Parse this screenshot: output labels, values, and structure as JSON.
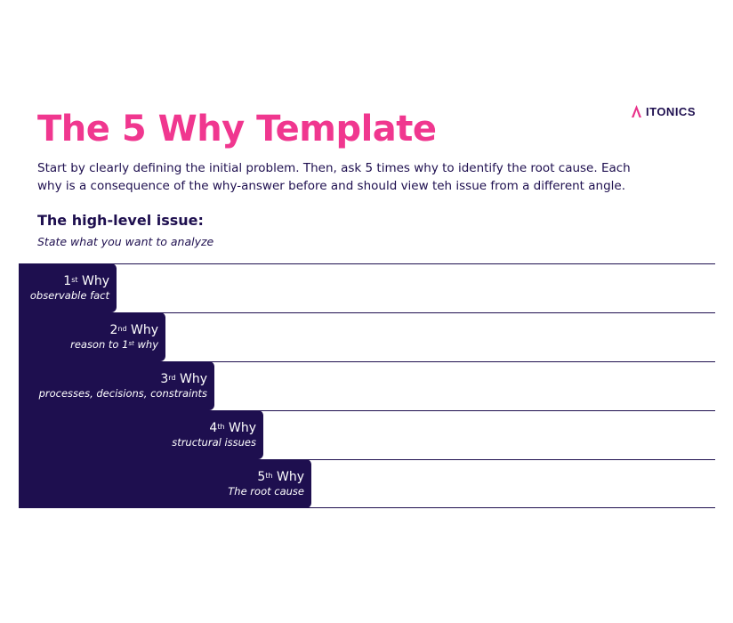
{
  "title": "The 5 Why Template",
  "logo": {
    "text": "ITONICS",
    "icon": "itonics-triangle-icon",
    "color": "#e8318a"
  },
  "intro": "Start by clearly defining the initial problem. Then, ask 5 times why to identify the root cause. Each why is a consequence of the why-answer before and should view teh issue from a different angle.",
  "issue": {
    "heading": "The high-level issue:",
    "subtext": "State what you want to analyze"
  },
  "whys": [
    {
      "num": "1",
      "suffix": "st",
      "label": "Why",
      "desc": "observable fact"
    },
    {
      "num": "2",
      "suffix": "nd",
      "label": "Why",
      "desc_pre": "reason to 1",
      "desc_sup": "st",
      "desc_post": " why"
    },
    {
      "num": "3",
      "suffix": "rd",
      "label": "Why",
      "desc": "processes, decisions, constraints"
    },
    {
      "num": "4",
      "suffix": "th",
      "label": "Why",
      "desc": "structural issues"
    },
    {
      "num": "5",
      "suffix": "th",
      "label": "Why",
      "desc": "The root cause"
    }
  ],
  "colors": {
    "title": "#f0378f",
    "navy": "#1e0f4f",
    "background": "#ffffff"
  }
}
